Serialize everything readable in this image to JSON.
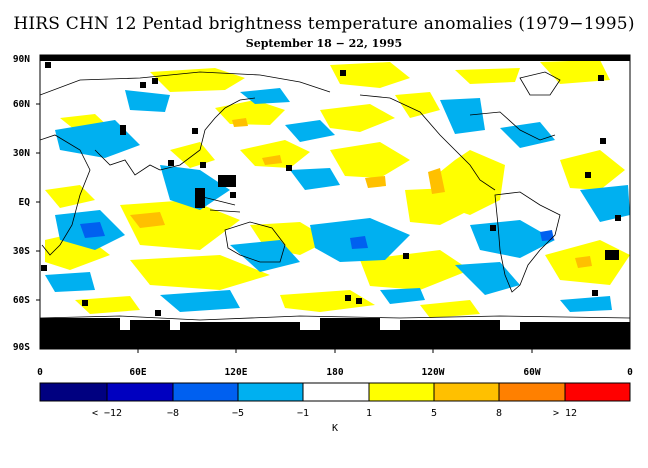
{
  "title": "HIRS CHN 12 Pentad brightness temperature anomalies (1979−1995)",
  "subtitle": "September 18 − 22, 1995",
  "lat_labels": [
    "90N",
    "60N",
    "30N",
    "EQ",
    "30S",
    "60S",
    "90S"
  ],
  "lon_labels": [
    "0",
    "60E",
    "120E",
    "180",
    "120W",
    "60W",
    "0"
  ],
  "colorbar": {
    "colors": [
      "#000080",
      "#0000c0",
      "#0060f0",
      "#00b0f0",
      "#ffffff",
      "#ffff00",
      "#ffc000",
      "#ff8000",
      "#ff0000"
    ],
    "labels": [
      "< −12",
      "−8",
      "−5",
      "−1",
      "1",
      "5",
      "8",
      "> 12"
    ],
    "unit": "K"
  }
}
